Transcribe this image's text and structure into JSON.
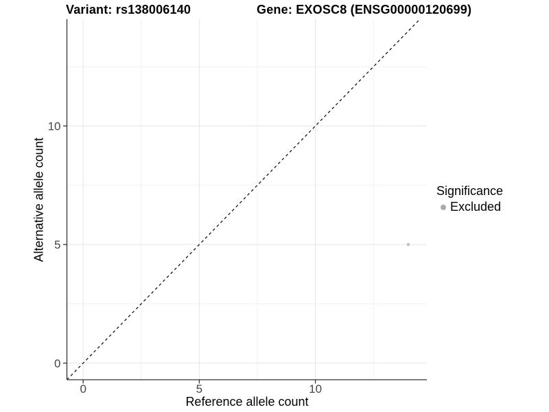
{
  "chart_data": {
    "type": "scatter",
    "title_left": "Variant: rs138006140",
    "title_right": "Gene: EXOSC8 (ENSG00000120699)",
    "xlabel": "Reference allele count",
    "ylabel": "Alternative allele count",
    "xlim": [
      -0.7,
      14.8
    ],
    "ylim": [
      -0.7,
      14.5
    ],
    "x_ticks": [
      0,
      5,
      10
    ],
    "y_ticks": [
      0,
      5,
      10
    ],
    "x_minor_ticks": [
      2.5,
      7.5,
      12.5
    ],
    "y_minor_ticks": [
      2.5,
      7.5,
      12.5
    ],
    "grid": true,
    "identity_line": {
      "slope": 1,
      "intercept": 0,
      "style": "dashed"
    },
    "points": [
      {
        "x": 14,
        "y": 5,
        "significance": "Excluded"
      }
    ],
    "legend": {
      "title": "Significance",
      "position": "right",
      "items": [
        {
          "label": "Excluded",
          "color": "#a9a9a9"
        }
      ]
    },
    "colors": {
      "grid_major": "#e5e5e5",
      "grid_minor": "#f1f1f1",
      "axis": "#333333",
      "tick_text": "#454545",
      "point": "#bfbfbf",
      "line": "#000000",
      "background": "#ffffff"
    }
  }
}
